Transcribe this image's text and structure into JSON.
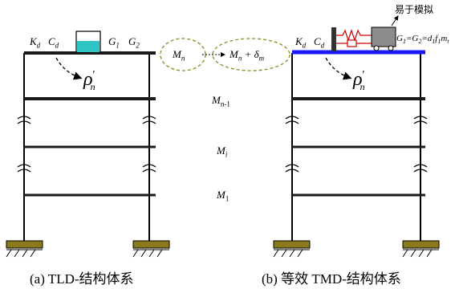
{
  "left": {
    "kd": "K",
    "kd_sub": "d",
    "cd": "C",
    "cd_sub": "d",
    "g1": "G",
    "g1_sub": "1",
    "g2": "G",
    "g2_sub": "2",
    "rho": "ρ",
    "rho_sub": "n",
    "rho_prime": "′",
    "caption": "(a) TLD-结构体系"
  },
  "middle": {
    "mass_n": "M",
    "mass_n_sub": "n",
    "mass_n_delta_a": "M",
    "mass_n_delta_sub": "n",
    "mass_n_delta_b": " + δ",
    "mass_n_delta_sub2": "m",
    "mass_n1": "M",
    "mass_n1_sub": "n-1",
    "mass_i": "M",
    "mass_i_sub": "i",
    "mass_1": "M",
    "mass_1_sub": "1"
  },
  "right": {
    "kd": "K",
    "kd_sub": "d",
    "cd": "C",
    "cd_sub": "d",
    "easy_label": "易于模拟",
    "g_eq": "G",
    "g_eq_sub1": "1",
    "g_eq_mid": "=G",
    "g_eq_sub2": "2",
    "g_eq_tail": "=d",
    "g_eq_sub3": "1",
    "g_eq_f": "f",
    "g_eq_sub4": "1",
    "g_eq_m": "m",
    "g_eq_sub5": "t",
    "rho": "ρ",
    "rho_sub": "n",
    "rho_prime": "′",
    "caption": "(b) 等效 TMD-结构体系"
  },
  "colors": {
    "tank_fill": "#2ec4c4",
    "right_roof": "#1a1aff",
    "mass_block": "#8c8c8c",
    "spring": "#cc0000",
    "ellipse": "#8a8a1e",
    "footing": "#8a7a1a"
  }
}
